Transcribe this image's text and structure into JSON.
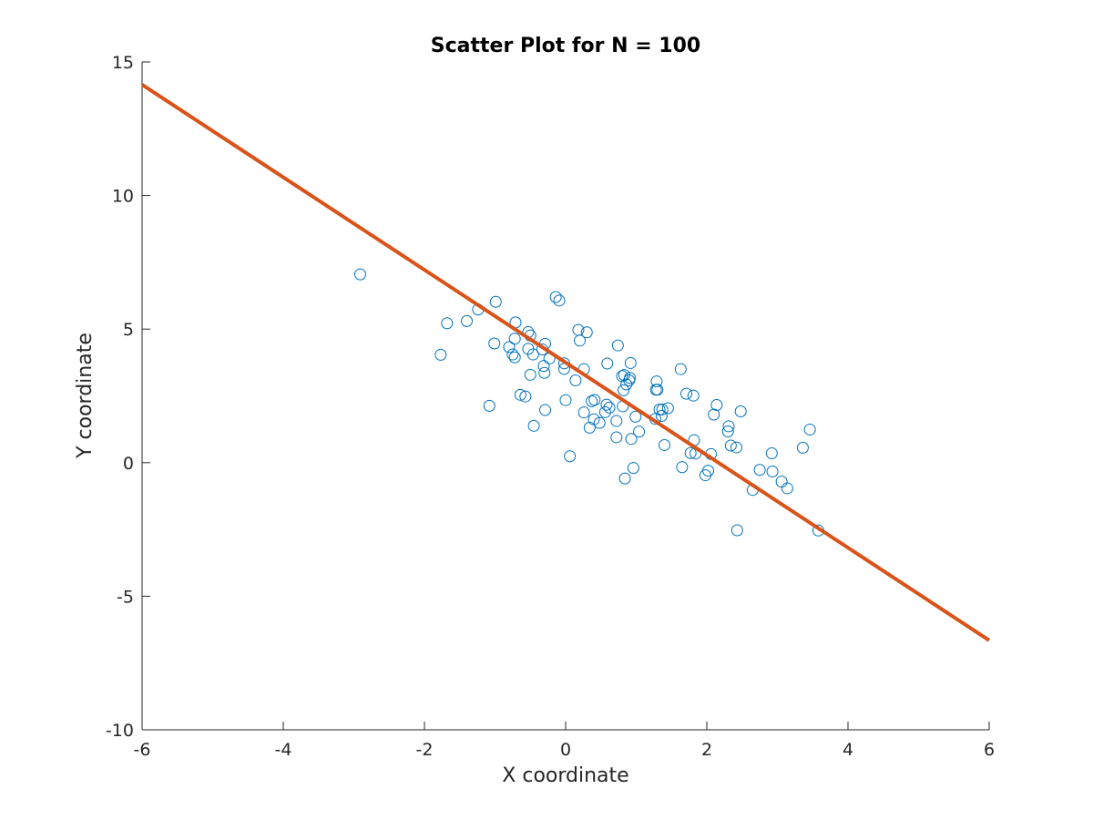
{
  "chart_data": {
    "type": "scatter",
    "title": "Scatter Plot for N = 100",
    "xlabel": "X coordinate",
    "ylabel": "Y coordinate",
    "xlim": [
      -6,
      6
    ],
    "ylim": [
      -10,
      15
    ],
    "xticks": [
      -6,
      -4,
      -2,
      0,
      2,
      4,
      6
    ],
    "yticks": [
      -10,
      -5,
      0,
      5,
      10,
      15
    ],
    "grid": false,
    "colors": {
      "points": "#0072bd",
      "line": "#d95319"
    },
    "series": [
      {
        "type": "scatter",
        "points": [
          [
            -2.91,
            7.05
          ],
          [
            -1.77,
            4.04
          ],
          [
            -1.68,
            5.22
          ],
          [
            -1.4,
            5.3
          ],
          [
            -1.24,
            5.73
          ],
          [
            -1.08,
            2.13
          ],
          [
            -1.01,
            4.46
          ],
          [
            -0.99,
            6.02
          ],
          [
            -0.8,
            4.33
          ],
          [
            -0.75,
            4.05
          ],
          [
            -0.72,
            3.94
          ],
          [
            -0.72,
            4.64
          ],
          [
            -0.71,
            5.25
          ],
          [
            -0.64,
            2.54
          ],
          [
            -0.57,
            2.48
          ],
          [
            -0.53,
            4.26
          ],
          [
            -0.53,
            4.89
          ],
          [
            -0.5,
            4.76
          ],
          [
            -0.5,
            3.29
          ],
          [
            -0.46,
            4.05
          ],
          [
            -0.45,
            1.38
          ],
          [
            -0.33,
            4.24
          ],
          [
            -0.31,
            3.62
          ],
          [
            -0.3,
            3.36
          ],
          [
            -0.29,
            4.45
          ],
          [
            -0.29,
            1.97
          ],
          [
            -0.23,
            3.9
          ],
          [
            -0.14,
            6.2
          ],
          [
            -0.09,
            6.07
          ],
          [
            -0.02,
            3.72
          ],
          [
            -0.02,
            3.51
          ],
          [
            0.0,
            2.34
          ],
          [
            0.06,
            0.24
          ],
          [
            0.14,
            3.08
          ],
          [
            0.18,
            4.97
          ],
          [
            0.2,
            4.57
          ],
          [
            0.26,
            1.88
          ],
          [
            0.26,
            3.5
          ],
          [
            0.3,
            4.88
          ],
          [
            0.34,
            1.31
          ],
          [
            0.37,
            2.3
          ],
          [
            0.4,
            1.62
          ],
          [
            0.41,
            2.35
          ],
          [
            0.48,
            1.49
          ],
          [
            0.56,
            1.89
          ],
          [
            0.58,
            2.17
          ],
          [
            0.59,
            3.71
          ],
          [
            0.62,
            2.06
          ],
          [
            0.72,
            0.95
          ],
          [
            0.72,
            1.56
          ],
          [
            0.74,
            4.39
          ],
          [
            0.8,
            3.24
          ],
          [
            0.81,
            2.11
          ],
          [
            0.82,
            2.71
          ],
          [
            0.83,
            3.28
          ],
          [
            0.84,
            -0.59
          ],
          [
            0.86,
            2.93
          ],
          [
            0.9,
            3.08
          ],
          [
            0.91,
            3.17
          ],
          [
            0.92,
            3.73
          ],
          [
            0.93,
            0.89
          ],
          [
            0.96,
            -0.2
          ],
          [
            0.99,
            1.72
          ],
          [
            1.04,
            1.16
          ],
          [
            1.27,
            1.64
          ],
          [
            1.28,
            2.73
          ],
          [
            1.29,
            3.04
          ],
          [
            1.33,
            1.99
          ],
          [
            1.36,
            1.75
          ],
          [
            1.37,
            1.99
          ],
          [
            1.4,
            0.66
          ],
          [
            1.45,
            2.04
          ],
          [
            1.63,
            3.5
          ],
          [
            1.65,
            -0.17
          ],
          [
            1.71,
            2.58
          ],
          [
            1.77,
            0.36
          ],
          [
            1.81,
            2.51
          ],
          [
            1.82,
            0.84
          ],
          [
            1.84,
            0.34
          ],
          [
            1.98,
            -0.47
          ],
          [
            2.02,
            -0.3
          ],
          [
            2.06,
            0.32
          ],
          [
            2.1,
            1.8
          ],
          [
            2.14,
            2.16
          ],
          [
            2.3,
            1.17
          ],
          [
            2.31,
            1.36
          ],
          [
            2.34,
            0.64
          ],
          [
            2.42,
            0.57
          ],
          [
            2.43,
            -2.53
          ],
          [
            2.48,
            1.92
          ],
          [
            2.65,
            -1.02
          ],
          [
            2.75,
            -0.27
          ],
          [
            2.92,
            0.35
          ],
          [
            2.93,
            -0.33
          ],
          [
            3.06,
            -0.71
          ],
          [
            3.14,
            -0.96
          ],
          [
            3.36,
            0.56
          ],
          [
            3.46,
            1.24
          ],
          [
            3.58,
            -2.54
          ],
          [
            1.3,
            2.73
          ]
        ]
      },
      {
        "type": "line",
        "x": [
          -6,
          6
        ],
        "y": [
          14.15,
          -6.65
        ]
      }
    ]
  }
}
